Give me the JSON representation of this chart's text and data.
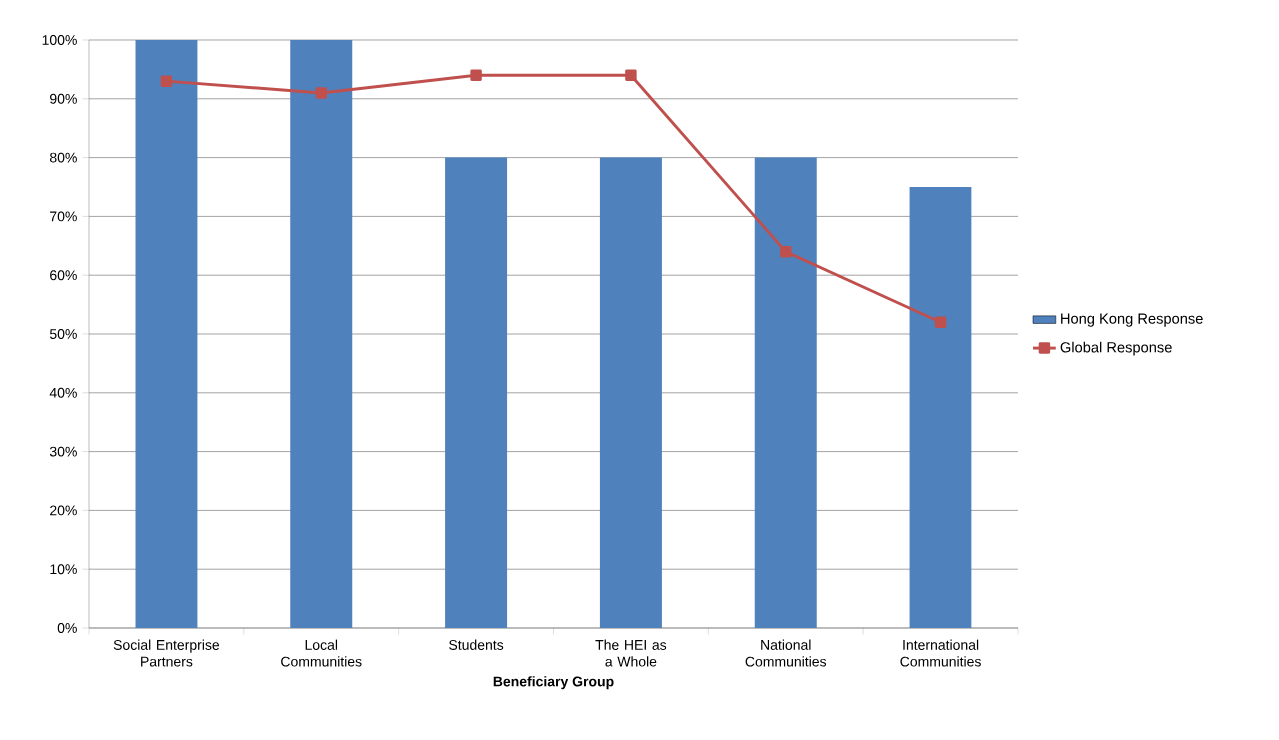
{
  "chart_data": {
    "type": "bar",
    "xlabel": "Beneficiary Group",
    "categories": [
      "Social Enterprise Partners",
      "Local Communities",
      "Students",
      "The HEI as a Whole",
      "National Communities",
      "International Communities"
    ],
    "series": [
      {
        "name": "Hong Kong Response",
        "color": "#4f81bd",
        "values": [
          100,
          100,
          80,
          80,
          80,
          75
        ]
      },
      {
        "name": "Global Response",
        "type": "line",
        "color": "#c0504d",
        "marker": "square",
        "values": [
          93,
          91,
          94,
          94,
          64,
          52
        ]
      }
    ],
    "ylim": [
      0,
      100
    ],
    "yticks": [
      {
        "value": 0,
        "label": "0%"
      },
      {
        "value": 10,
        "label": "10%"
      },
      {
        "value": 20,
        "label": "20%"
      },
      {
        "value": 30,
        "label": "30%"
      },
      {
        "value": 40,
        "label": "40%"
      },
      {
        "value": 50,
        "label": "50%"
      },
      {
        "value": 60,
        "label": "60%"
      },
      {
        "value": 70,
        "label": "70%"
      },
      {
        "value": 80,
        "label": "80%"
      },
      {
        "value": 90,
        "label": "90%"
      },
      {
        "value": 100,
        "label": "100%"
      }
    ],
    "grid": "y",
    "legend": "right"
  }
}
